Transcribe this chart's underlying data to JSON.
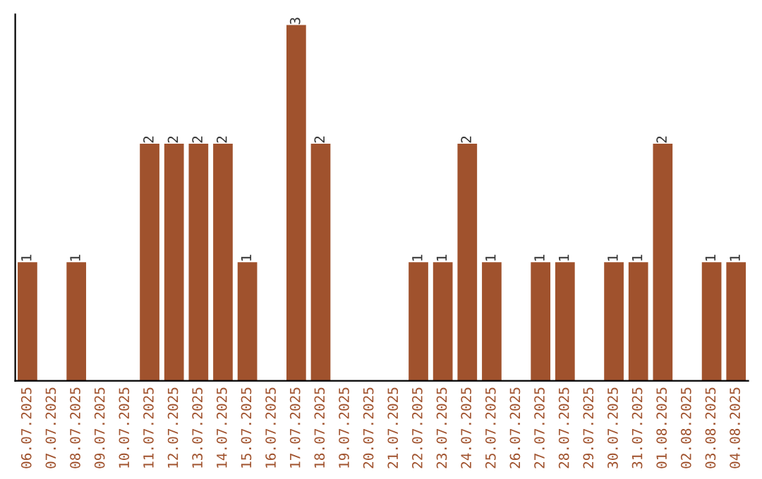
{
  "chart_data": {
    "type": "bar",
    "categories": [
      "06.07.2025",
      "07.07.2025",
      "08.07.2025",
      "09.07.2025",
      "10.07.2025",
      "11.07.2025",
      "12.07.2025",
      "13.07.2025",
      "14.07.2025",
      "15.07.2025",
      "16.07.2025",
      "17.07.2025",
      "18.07.2025",
      "19.07.2025",
      "20.07.2025",
      "21.07.2025",
      "22.07.2025",
      "23.07.2025",
      "24.07.2025",
      "25.07.2025",
      "26.07.2025",
      "27.07.2025",
      "28.07.2025",
      "29.07.2025",
      "30.07.2025",
      "31.07.2025",
      "01.08.2025",
      "02.08.2025",
      "03.08.2025",
      "04.08.2025"
    ],
    "values": [
      1,
      0,
      1,
      0,
      0,
      2,
      2,
      2,
      2,
      1,
      0,
      3,
      2,
      0,
      0,
      0,
      1,
      1,
      2,
      1,
      0,
      1,
      1,
      0,
      1,
      1,
      2,
      0,
      1,
      1
    ],
    "value_labels": [
      "1",
      null,
      "1",
      null,
      null,
      "2",
      "2",
      "2",
      "2",
      "1",
      null,
      "3",
      "2",
      null,
      null,
      null,
      "1",
      "1",
      "2",
      "1",
      null,
      "1",
      "1",
      null,
      "1",
      "1",
      "2",
      null,
      "1",
      "1"
    ],
    "color": "#a0522d",
    "tick_labels": "x",
    "grid": false,
    "legend": false
  }
}
